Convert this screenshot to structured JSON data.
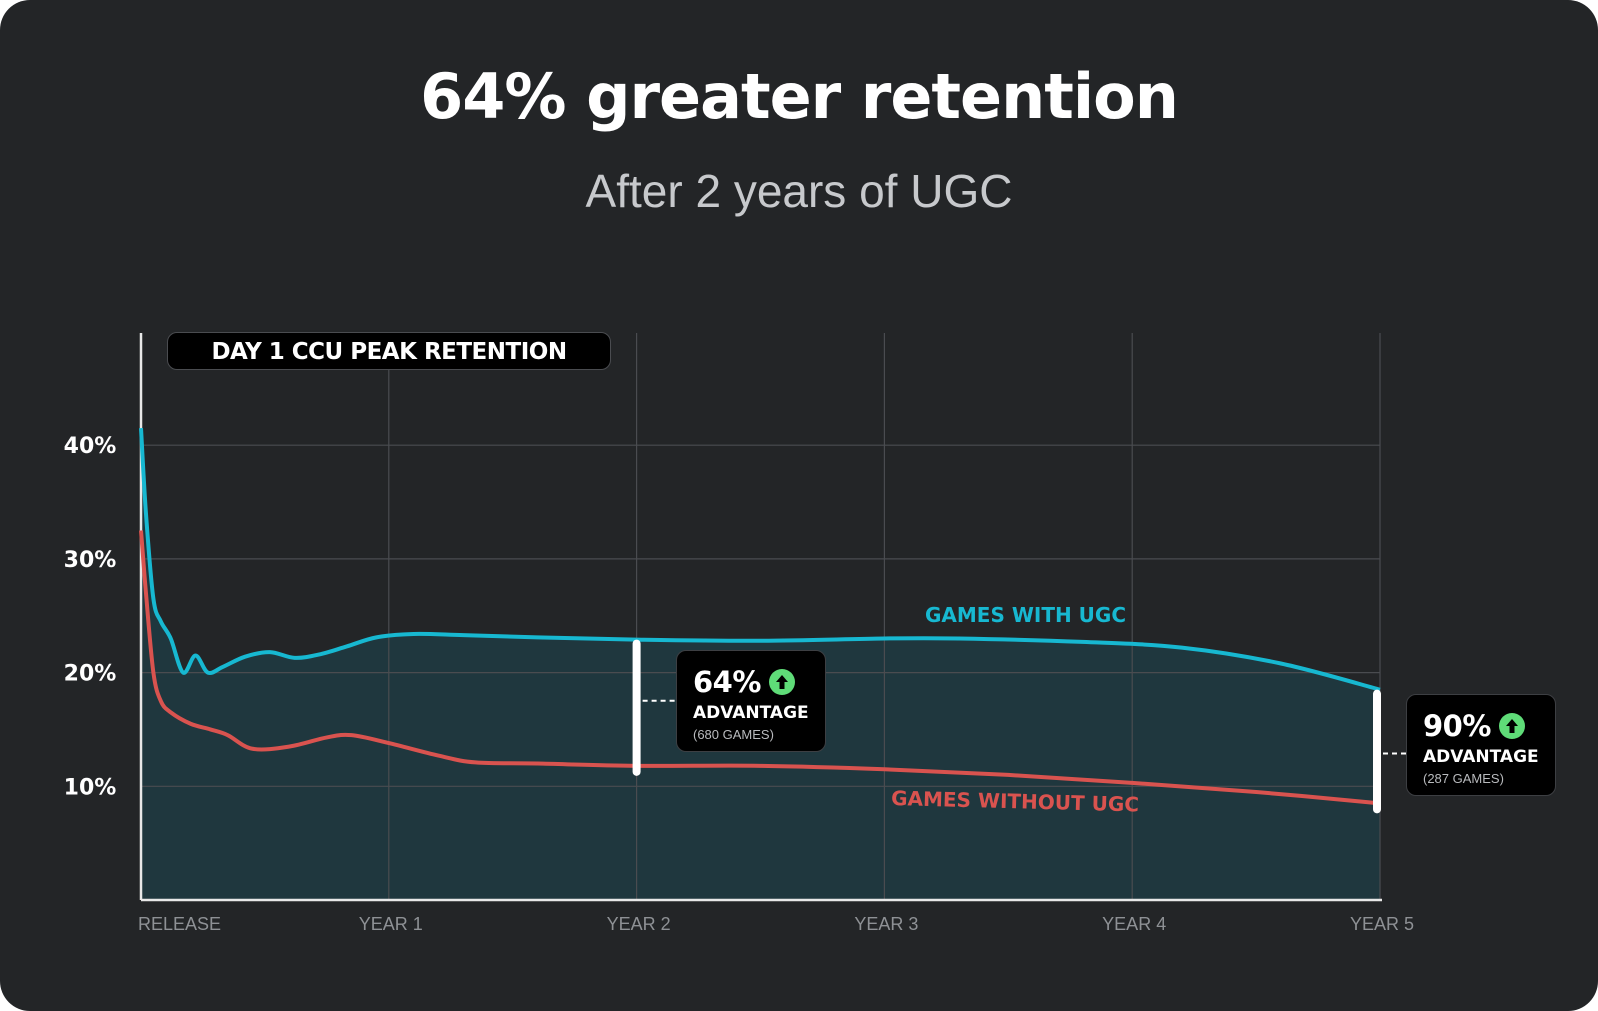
{
  "header": {
    "title": "64% greater retention",
    "subtitle": "After 2 years of UGC"
  },
  "chart_label": "DAY 1 CCU PEAK RETENTION",
  "callouts": [
    {
      "percent": "64%",
      "label": "ADVANTAGE",
      "games": "(680 GAMES)"
    },
    {
      "percent": "90%",
      "label": "ADVANTAGE",
      "games": "(287 GAMES)"
    }
  ],
  "colors": {
    "background": "#232527",
    "with_ugc": "#17b8d1",
    "without_ugc": "#d9534f",
    "fill": "#1f3a41",
    "grid": "#4a4c50",
    "advantage_icon": "#5fdc78"
  },
  "chart_data": {
    "type": "line",
    "title": "DAY 1 CCU PEAK RETENTION",
    "x_ticks": [
      "RELEASE",
      "YEAR 1",
      "YEAR 2",
      "YEAR 3",
      "YEAR 4",
      "YEAR 5"
    ],
    "y_ticks": [
      "10%",
      "20%",
      "30%",
      "40%"
    ],
    "xlim": [
      0,
      5
    ],
    "ylim": [
      0,
      50
    ],
    "grid": true,
    "series": [
      {
        "name": "GAMES WITH UGC",
        "x": [
          0,
          0.02,
          0.05,
          0.08,
          0.12,
          0.17,
          0.22,
          0.27,
          0.33,
          0.42,
          0.52,
          0.62,
          0.72,
          0.83,
          0.95,
          1.1,
          1.3,
          1.6,
          2.0,
          2.5,
          3.0,
          3.3,
          3.8,
          4.2,
          4.6,
          5.0
        ],
        "y": [
          41.5,
          34,
          26.5,
          24.5,
          23,
          20,
          21.5,
          20,
          20.5,
          21.4,
          21.8,
          21.3,
          21.6,
          22.3,
          23.1,
          23.4,
          23.3,
          23.1,
          22.9,
          22.8,
          23.0,
          23.0,
          22.7,
          22.2,
          20.8,
          18.5
        ]
      },
      {
        "name": "GAMES WITHOUT UGC",
        "x": [
          0,
          0.02,
          0.05,
          0.08,
          0.12,
          0.2,
          0.28,
          0.35,
          0.45,
          0.6,
          0.75,
          0.85,
          1.0,
          1.2,
          1.35,
          1.6,
          2.0,
          2.5,
          3.0,
          3.5,
          4.0,
          4.5,
          5.0
        ],
        "y": [
          32.5,
          27,
          20,
          17.5,
          16.5,
          15.5,
          15,
          14.5,
          13.3,
          13.5,
          14.3,
          14.5,
          13.8,
          12.7,
          12.1,
          12.0,
          11.8,
          11.8,
          11.5,
          11.0,
          10.3,
          9.5,
          8.5
        ]
      }
    ],
    "annotations": [
      {
        "x": 2,
        "label": "64% ADVANTAGE (680 GAMES)"
      },
      {
        "x": 5,
        "label": "90% ADVANTAGE (287 GAMES)"
      }
    ]
  }
}
